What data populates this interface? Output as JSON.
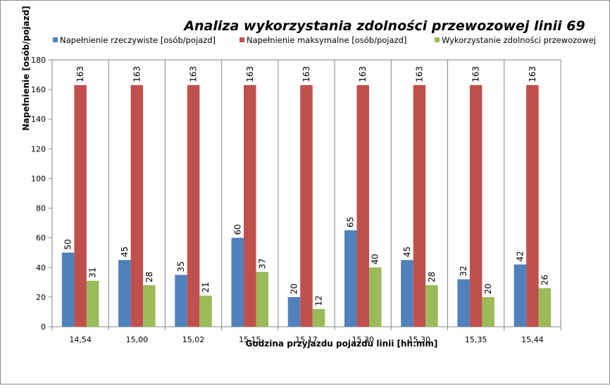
{
  "chart_data": {
    "type": "bar",
    "title": "Analiza wykorzystania zdolności przewozowej linii 69",
    "xlabel": "Godzina przyjazdu pojazdu linii [hh:mm]",
    "ylabel": "Napełnienie [osób/pojazd]",
    "ylim": [
      0,
      180
    ],
    "yticks": [
      "0",
      "20",
      "40",
      "60",
      "80",
      "100",
      "120",
      "140",
      "160",
      "180"
    ],
    "grid": "vertical category lines",
    "legend_position": "top",
    "categories": [
      "14,54",
      "15,00",
      "15,02",
      "15,15",
      "15,17",
      "15,30",
      "15,30",
      "15,35",
      "15,44"
    ],
    "series": [
      {
        "name": "Napełnienie rzeczywiste [osób/pojazd]",
        "color": "#4f81bd",
        "values": [
          50,
          45,
          35,
          60,
          20,
          65,
          45,
          32,
          42
        ]
      },
      {
        "name": "Napełnienie maksymalne [osób/pojazd]",
        "color": "#c0504d",
        "values": [
          163,
          163,
          163,
          163,
          163,
          163,
          163,
          163,
          163
        ]
      },
      {
        "name": "Wykorzystanie zdolności przewozowej",
        "color": "#9bbb59",
        "values": [
          31,
          28,
          21,
          37,
          12,
          40,
          28,
          20,
          26
        ]
      }
    ]
  }
}
